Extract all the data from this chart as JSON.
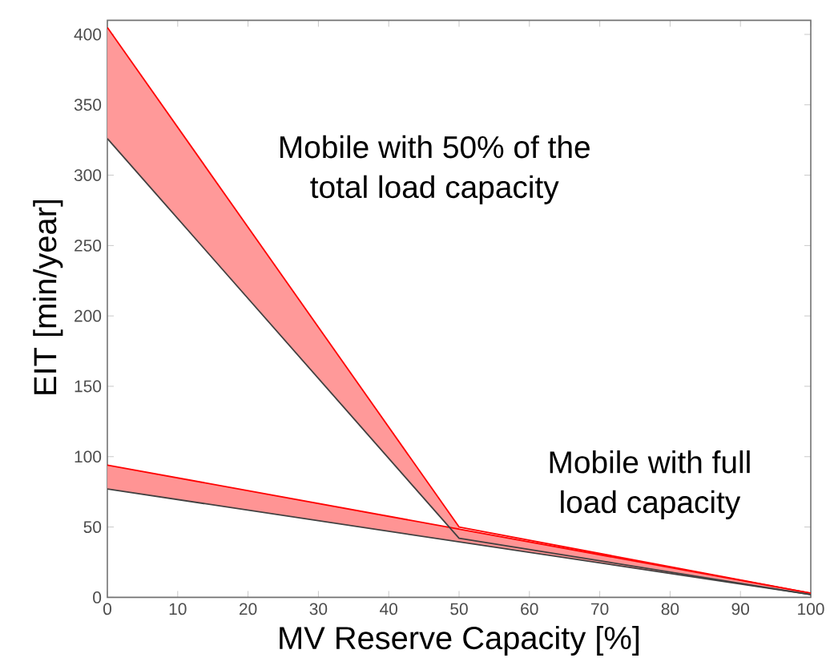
{
  "chart_data": {
    "type": "line",
    "xlabel": "MV Reserve Capacity [%]",
    "ylabel": "EIT [min/year]",
    "annotations": [
      "Mobile with 50% of the total load capacity",
      "Mobile with full load capacity"
    ],
    "xlim": [
      0,
      100
    ],
    "ylim": [
      0,
      410
    ],
    "xticks": [
      0,
      10,
      20,
      30,
      40,
      50,
      60,
      70,
      80,
      90,
      100
    ],
    "yticks": [
      0,
      50,
      100,
      150,
      200,
      250,
      300,
      350,
      400
    ],
    "series": [
      {
        "color": "#ff0000",
        "x": [
          0,
          50,
          100
        ],
        "values": [
          405,
          50,
          3
        ],
        "lower": [
          326,
          42,
          null
        ],
        "upper": [
          405,
          50,
          null
        ]
      },
      {
        "color": "#ff0000",
        "x": [
          0,
          100
        ],
        "values": [
          94,
          3
        ],
        "lower": [
          77,
          2
        ],
        "upper": [
          94,
          3
        ]
      },
      {
        "color": "#404040",
        "x": [
          0,
          50,
          100
        ],
        "values": [
          326,
          42,
          2
        ]
      },
      {
        "color": "#404040",
        "x": [
          0,
          100
        ],
        "values": [
          77,
          2
        ]
      }
    ]
  }
}
